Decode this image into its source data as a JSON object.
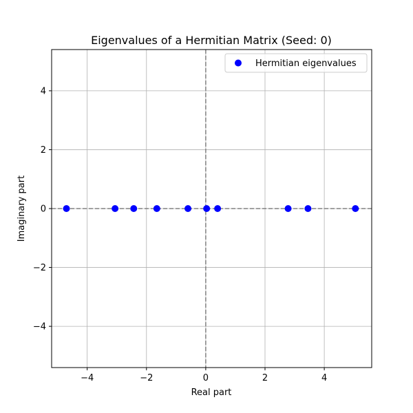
{
  "chart_data": {
    "type": "scatter",
    "title": "Eigenvalues of a Hermitian Matrix (Seed: 0)",
    "xlabel": "Real part",
    "ylabel": "Imaginary part",
    "xlim": [
      -5.2,
      5.6
    ],
    "ylim": [
      -5.4,
      5.4
    ],
    "xticks": [
      -4,
      -2,
      0,
      2,
      4
    ],
    "yticks": [
      -4,
      -2,
      0,
      2,
      4
    ],
    "xtick_labels": [
      "−4",
      "−2",
      "0",
      "2",
      "4"
    ],
    "ytick_labels": [
      "−4",
      "−2",
      "0",
      "2",
      "4"
    ],
    "grid": true,
    "legend_position": "top-right",
    "reference_lines": [
      "x = 0 (dashed)",
      "y = 0 (dashed)"
    ],
    "series": [
      {
        "name": "Hermitian eigenvalues",
        "color": "#0000ff",
        "marker": "circle",
        "x": [
          -4.7,
          -3.06,
          -2.43,
          -1.65,
          -0.6,
          0.03,
          0.4,
          2.78,
          3.45,
          5.05
        ],
        "y": [
          0,
          0,
          0,
          0,
          0,
          0,
          0,
          0,
          0,
          0
        ]
      }
    ]
  }
}
